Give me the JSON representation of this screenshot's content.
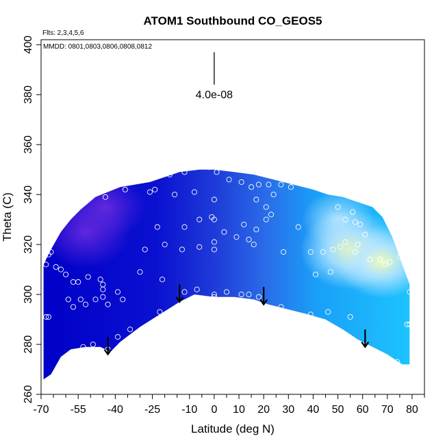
{
  "chart_data": {
    "type": "heatmap",
    "title": "ATOM1 Southbound CO_GEOS5",
    "xlabel": "Latitude (deg N)",
    "ylabel": "Theta (C)",
    "xlim": [
      -70,
      85
    ],
    "ylim": [
      260,
      402
    ],
    "x_ticks_major": [
      -70,
      -55,
      -40,
      -25,
      -10,
      0,
      10,
      20,
      30,
      40,
      50,
      60,
      70,
      80
    ],
    "x_ticks_minor": [
      -65,
      -60,
      -50,
      -45,
      -35,
      -30,
      -20,
      -15,
      -5,
      5,
      15,
      25,
      35,
      45,
      55,
      65,
      75,
      85
    ],
    "y_ticks": [
      260,
      280,
      300,
      320,
      340,
      360,
      380,
      400
    ],
    "annotation_flights": "Flts: 2,3,4,5,6",
    "annotation_dates": "MMDD: 0801,0803,0806,0808,0812",
    "scale_bar_label": "4.0e-08",
    "scale_bar": {
      "x": 0,
      "y_top": 397,
      "y_bottom": 384
    },
    "colors": {
      "dark": "#0000c8",
      "purple": "#6a2ae0",
      "mid": "#2a6ae8",
      "light": "#1ec8ff",
      "pale": "#bfe8ff",
      "yellow": "#ffffb0",
      "point": "#ffffff",
      "arrow": "#000000"
    },
    "floor_profile": [
      {
        "lat": -69,
        "theta": 266
      },
      {
        "lat": -66,
        "theta": 268
      },
      {
        "lat": -62,
        "theta": 275
      },
      {
        "lat": -58,
        "theta": 278
      },
      {
        "lat": -52,
        "theta": 279
      },
      {
        "lat": -46,
        "theta": 279
      },
      {
        "lat": -42,
        "theta": 277
      },
      {
        "lat": -38,
        "theta": 281
      },
      {
        "lat": -30,
        "theta": 287
      },
      {
        "lat": -22,
        "theta": 292
      },
      {
        "lat": -14,
        "theta": 297
      },
      {
        "lat": -8,
        "theta": 300
      },
      {
        "lat": 0,
        "theta": 299
      },
      {
        "lat": 8,
        "theta": 299
      },
      {
        "lat": 16,
        "theta": 298
      },
      {
        "lat": 22,
        "theta": 296
      },
      {
        "lat": 30,
        "theta": 294
      },
      {
        "lat": 38,
        "theta": 292
      },
      {
        "lat": 45,
        "theta": 290
      },
      {
        "lat": 52,
        "theta": 286
      },
      {
        "lat": 58,
        "theta": 282
      },
      {
        "lat": 64,
        "theta": 279
      },
      {
        "lat": 70,
        "theta": 276
      },
      {
        "lat": 76,
        "theta": 272
      },
      {
        "lat": 79,
        "theta": 272
      }
    ],
    "top_profile": [
      {
        "lat": -69,
        "theta": 312
      },
      {
        "lat": -66,
        "theta": 318
      },
      {
        "lat": -62,
        "theta": 325
      },
      {
        "lat": -58,
        "theta": 330
      },
      {
        "lat": -54,
        "theta": 334
      },
      {
        "lat": -48,
        "theta": 339
      },
      {
        "lat": -43,
        "theta": 341
      },
      {
        "lat": -38,
        "theta": 343
      },
      {
        "lat": -32,
        "theta": 344
      },
      {
        "lat": -26,
        "theta": 345
      },
      {
        "lat": -20,
        "theta": 347
      },
      {
        "lat": -14,
        "theta": 349
      },
      {
        "lat": -6,
        "theta": 350
      },
      {
        "lat": 0,
        "theta": 350
      },
      {
        "lat": 8,
        "theta": 349
      },
      {
        "lat": 16,
        "theta": 348
      },
      {
        "lat": 24,
        "theta": 346
      },
      {
        "lat": 32,
        "theta": 344
      },
      {
        "lat": 40,
        "theta": 342
      },
      {
        "lat": 46,
        "theta": 340
      },
      {
        "lat": 52,
        "theta": 339
      },
      {
        "lat": 58,
        "theta": 337
      },
      {
        "lat": 64,
        "theta": 335
      },
      {
        "lat": 68,
        "theta": 331
      },
      {
        "lat": 72,
        "theta": 323
      },
      {
        "lat": 76,
        "theta": 312
      },
      {
        "lat": 79,
        "theta": 304
      },
      {
        "lat": 79,
        "theta": 290
      }
    ],
    "field_peaks": [
      {
        "lat": -52,
        "theta": 325,
        "intensity": 0.8,
        "color": "purple"
      },
      {
        "lat": -44,
        "theta": 335,
        "intensity": 0.7,
        "color": "purple"
      },
      {
        "lat": 55,
        "theta": 318,
        "intensity": 0.9,
        "color": "yellow"
      },
      {
        "lat": 68,
        "theta": 313,
        "intensity": 0.8,
        "color": "yellow"
      },
      {
        "lat": 50,
        "theta": 330,
        "intensity": 0.6,
        "color": "pale"
      }
    ],
    "arrows": [
      {
        "lat": -43,
        "theta_top": 283,
        "theta_bottom": 276
      },
      {
        "lat": -14,
        "theta_top": 304,
        "theta_bottom": 297
      },
      {
        "lat": 20,
        "theta_top": 303,
        "theta_bottom": 296
      },
      {
        "lat": 61,
        "theta_top": 286,
        "theta_bottom": 279
      }
    ],
    "points": [
      {
        "lat": -68,
        "theta": 312
      },
      {
        "lat": -67,
        "theta": 316
      },
      {
        "lat": -66,
        "theta": 317
      },
      {
        "lat": -64,
        "theta": 311
      },
      {
        "lat": -62,
        "theta": 310
      },
      {
        "lat": -60,
        "theta": 308
      },
      {
        "lat": -57,
        "theta": 305
      },
      {
        "lat": -55,
        "theta": 305
      },
      {
        "lat": -51,
        "theta": 307
      },
      {
        "lat": -46,
        "theta": 306
      },
      {
        "lat": -45,
        "theta": 304
      },
      {
        "lat": -45,
        "theta": 302
      },
      {
        "lat": -43,
        "theta": 296
      },
      {
        "lat": -45,
        "theta": 299
      },
      {
        "lat": -48,
        "theta": 298
      },
      {
        "lat": -52,
        "theta": 296
      },
      {
        "lat": -54,
        "theta": 298
      },
      {
        "lat": -59,
        "theta": 298
      },
      {
        "lat": -57,
        "theta": 295
      },
      {
        "lat": -67,
        "theta": 291
      },
      {
        "lat": -68,
        "theta": 291
      },
      {
        "lat": -39,
        "theta": 301
      },
      {
        "lat": -37,
        "theta": 298
      },
      {
        "lat": -30,
        "theta": 309
      },
      {
        "lat": -28,
        "theta": 318
      },
      {
        "lat": -34,
        "theta": 286
      },
      {
        "lat": -39,
        "theta": 283
      },
      {
        "lat": -43,
        "theta": 278
      },
      {
        "lat": -49,
        "theta": 280
      },
      {
        "lat": -53,
        "theta": 279
      },
      {
        "lat": -57,
        "theta": 277
      },
      {
        "lat": -44,
        "theta": 339
      },
      {
        "lat": -36,
        "theta": 342
      },
      {
        "lat": -26,
        "theta": 341
      },
      {
        "lat": -24,
        "theta": 342
      },
      {
        "lat": -18,
        "theta": 348
      },
      {
        "lat": -12,
        "theta": 349
      },
      {
        "lat": -2,
        "theta": 351
      },
      {
        "lat": 1,
        "theta": 349
      },
      {
        "lat": 6,
        "theta": 346
      },
      {
        "lat": 11,
        "theta": 345
      },
      {
        "lat": 15,
        "theta": 343
      },
      {
        "lat": 18,
        "theta": 344
      },
      {
        "lat": 22,
        "theta": 344
      },
      {
        "lat": 27,
        "theta": 344
      },
      {
        "lat": 31,
        "theta": 343
      },
      {
        "lat": 24,
        "theta": 340
      },
      {
        "lat": 21,
        "theta": 335
      },
      {
        "lat": 17,
        "theta": 338
      },
      {
        "lat": -16,
        "theta": 340
      },
      {
        "lat": -8,
        "theta": 341
      },
      {
        "lat": 0,
        "theta": 338
      },
      {
        "lat": -6,
        "theta": 330
      },
      {
        "lat": -1,
        "theta": 331
      },
      {
        "lat": 0,
        "theta": 330
      },
      {
        "lat": -12,
        "theta": 327
      },
      {
        "lat": -23,
        "theta": 327
      },
      {
        "lat": 12,
        "theta": 328
      },
      {
        "lat": 17,
        "theta": 326
      },
      {
        "lat": 21,
        "theta": 330
      },
      {
        "lat": 23,
        "theta": 332
      },
      {
        "lat": 14,
        "theta": 322
      },
      {
        "lat": 16,
        "theta": 320
      },
      {
        "lat": 4,
        "theta": 325
      },
      {
        "lat": 0,
        "theta": 321
      },
      {
        "lat": -6,
        "theta": 319
      },
      {
        "lat": -20,
        "theta": 320
      },
      {
        "lat": -13,
        "theta": 318
      },
      {
        "lat": 0,
        "theta": 318
      },
      {
        "lat": 9,
        "theta": 323
      },
      {
        "lat": 28,
        "theta": 317
      },
      {
        "lat": 34,
        "theta": 327
      },
      {
        "lat": 39,
        "theta": 317
      },
      {
        "lat": 44,
        "theta": 317
      },
      {
        "lat": 48,
        "theta": 318
      },
      {
        "lat": 51,
        "theta": 319
      },
      {
        "lat": 53,
        "theta": 321
      },
      {
        "lat": 57,
        "theta": 317
      },
      {
        "lat": 58,
        "theta": 320
      },
      {
        "lat": 61,
        "theta": 324
      },
      {
        "lat": 59,
        "theta": 328
      },
      {
        "lat": 57,
        "theta": 329
      },
      {
        "lat": 53,
        "theta": 330
      },
      {
        "lat": 50,
        "theta": 335
      },
      {
        "lat": 56,
        "theta": 333
      },
      {
        "lat": 74,
        "theta": 327
      },
      {
        "lat": 77,
        "theta": 331
      },
      {
        "lat": 63,
        "theta": 314
      },
      {
        "lat": 67,
        "theta": 314
      },
      {
        "lat": 69,
        "theta": 312
      },
      {
        "lat": 71,
        "theta": 313
      },
      {
        "lat": 75,
        "theta": 315
      },
      {
        "lat": 47,
        "theta": 309
      },
      {
        "lat": 41,
        "theta": 308
      },
      {
        "lat": 79,
        "theta": 301
      },
      {
        "lat": 78,
        "theta": 288
      },
      {
        "lat": 79,
        "theta": 288
      },
      {
        "lat": 74,
        "theta": 273
      },
      {
        "lat": 55,
        "theta": 291
      },
      {
        "lat": 46,
        "theta": 293
      },
      {
        "lat": 39,
        "theta": 292
      },
      {
        "lat": 35,
        "theta": 290
      },
      {
        "lat": 27,
        "theta": 295
      },
      {
        "lat": 18,
        "theta": 299
      },
      {
        "lat": 14,
        "theta": 300
      },
      {
        "lat": 11,
        "theta": 300
      },
      {
        "lat": 5,
        "theta": 301
      },
      {
        "lat": 0,
        "theta": 300
      },
      {
        "lat": 0,
        "theta": 299
      },
      {
        "lat": -7,
        "theta": 302
      },
      {
        "lat": -12,
        "theta": 301
      },
      {
        "lat": -22,
        "theta": 293
      },
      {
        "lat": -21,
        "theta": 306
      }
    ]
  }
}
